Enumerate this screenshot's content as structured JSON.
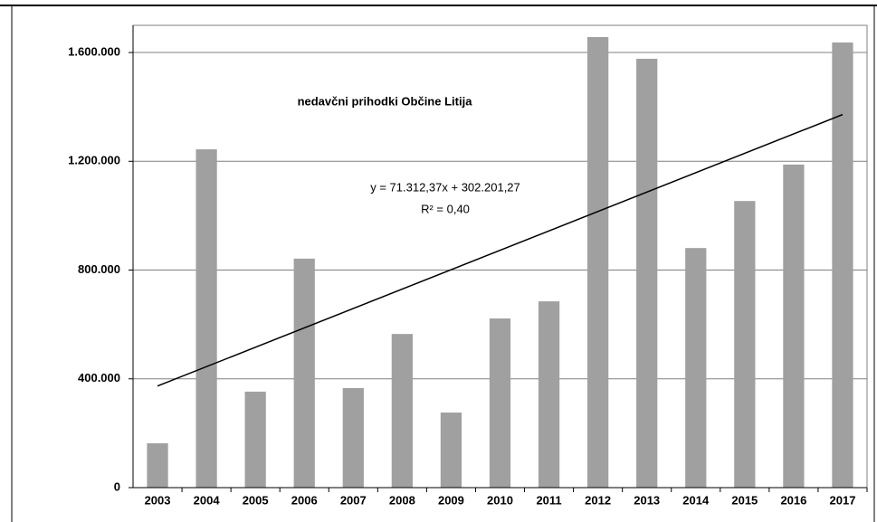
{
  "chart_data": {
    "type": "bar",
    "title": "nedavčni prihodki Občine Litija",
    "categories": [
      "2003",
      "2004",
      "2005",
      "2006",
      "2007",
      "2008",
      "2009",
      "2010",
      "2011",
      "2012",
      "2013",
      "2014",
      "2015",
      "2016",
      "2017"
    ],
    "values": [
      163000,
      1244000,
      353000,
      842000,
      366000,
      565000,
      276000,
      622000,
      685000,
      1657000,
      1577000,
      881000,
      1054000,
      1188000,
      1637000
    ],
    "color": "#a0a0a0",
    "ylim": [
      0,
      1700000
    ],
    "yticks": [
      0,
      {
        "value": 400000,
        "label": "400.000"
      },
      {
        "value": 800000,
        "label": "800.000"
      },
      {
        "value": 1200000,
        "label": "1.200.000"
      },
      {
        "value": 1600000,
        "label": "1.600.000"
      }
    ],
    "grid": true,
    "trendline": {
      "slope": 71312.37,
      "intercept": 302201.27,
      "color": "#000000",
      "equation": "y = 71.312,37x + 302.201,27",
      "r_squared": "R² = 0,40"
    }
  }
}
